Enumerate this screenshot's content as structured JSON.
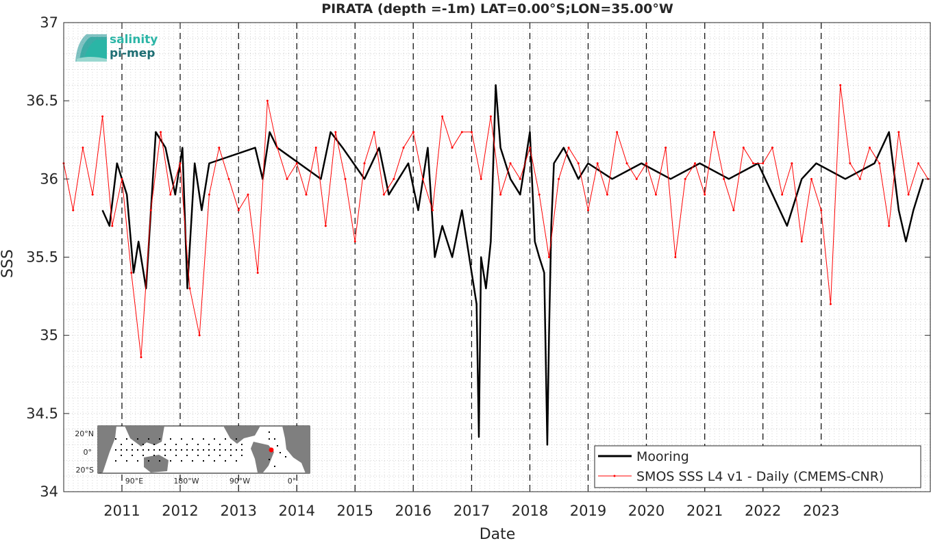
{
  "chart_data": {
    "type": "line",
    "title": "PIRATA (depth =-1m) LAT=0.00°S;LON=35.00°W",
    "xlabel": "Date",
    "ylabel": "SSS",
    "xlim": [
      "2010-01-01",
      "2024-11-15"
    ],
    "ylim": [
      34,
      37
    ],
    "yticks": [
      34,
      34.5,
      35,
      35.5,
      36,
      36.5,
      37
    ],
    "yticklabels": [
      "34",
      "34.5",
      "35",
      "35.5",
      "36",
      "36.5",
      "37"
    ],
    "xticks": [
      "2011-01-01",
      "2012-01-01",
      "2013-01-01",
      "2014-01-01",
      "2015-01-01",
      "2016-01-01",
      "2017-01-01",
      "2018-01-01",
      "2019-01-01",
      "2020-01-01",
      "2021-01-01",
      "2022-01-01",
      "2023-01-01"
    ],
    "xticklabels": [
      "2011",
      "2012",
      "2013",
      "2014",
      "2015",
      "2016",
      "2017",
      "2018",
      "2019",
      "2020",
      "2021",
      "2022",
      "2023"
    ],
    "grid": true,
    "legend_position": "bottom-right",
    "series": [
      {
        "name": "Mooring",
        "color": "#000000",
        "style": "thick-line",
        "x": [
          "2010-09-01",
          "2010-10-15",
          "2010-12-01",
          "2011-02-01",
          "2011-03-15",
          "2011-04-15",
          "2011-06-01",
          "2011-08-01",
          "2011-10-01",
          "2011-12-01",
          "2012-01-15",
          "2012-02-15",
          "2012-04-01",
          "2012-05-15",
          "2012-07-01",
          "2013-04-15",
          "2013-06-01",
          "2013-07-15",
          "2013-09-01",
          "2014-06-01",
          "2014-08-01",
          "2014-10-15",
          "2015-03-01",
          "2015-06-01",
          "2015-08-01",
          "2015-10-01",
          "2015-12-01",
          "2016-02-01",
          "2016-04-01",
          "2016-05-15",
          "2016-07-01",
          "2016-09-01",
          "2016-11-01",
          "2017-01-01",
          "2017-02-01",
          "2017-02-15",
          "2017-03-01",
          "2017-04-01",
          "2017-05-01",
          "2017-06-01",
          "2017-07-01",
          "2017-09-01",
          "2017-11-01",
          "2018-01-01",
          "2018-02-01",
          "2018-03-01",
          "2018-04-01",
          "2018-04-20",
          "2018-05-01",
          "2018-05-15",
          "2018-06-01",
          "2018-08-01",
          "2018-11-01",
          "2019-01-01",
          "2019-06-01",
          "2019-12-01",
          "2020-06-01",
          "2020-12-01",
          "2021-06-01",
          "2021-12-01",
          "2022-06-01",
          "2022-09-01",
          "2022-12-01",
          "2023-06-01",
          "2023-12-01",
          "2024-03-01",
          "2024-05-01",
          "2024-06-15",
          "2024-08-01",
          "2024-10-01"
        ],
        "y": [
          35.8,
          35.7,
          36.1,
          35.9,
          35.4,
          35.6,
          35.3,
          36.3,
          36.2,
          35.9,
          36.2,
          35.3,
          36.1,
          35.8,
          36.1,
          36.2,
          36.0,
          36.3,
          36.2,
          36.0,
          36.3,
          36.2,
          36.0,
          36.2,
          35.9,
          36.0,
          36.1,
          35.8,
          36.2,
          35.5,
          35.7,
          35.5,
          35.8,
          35.4,
          35.2,
          34.35,
          35.5,
          35.3,
          35.6,
          36.6,
          36.2,
          36.0,
          35.9,
          36.3,
          35.6,
          35.5,
          35.4,
          34.3,
          35.0,
          35.7,
          36.1,
          36.2,
          36.0,
          36.1,
          36.0,
          36.1,
          36.0,
          36.1,
          36.0,
          36.1,
          35.7,
          36.0,
          36.1,
          36.0,
          36.1,
          36.3,
          35.8,
          35.6,
          35.8,
          36.0
        ]
      },
      {
        "name": "SMOS SSS L4 v1 - Daily (CMEMS-CNR)",
        "color": "#ff0000",
        "style": "thin-line-dots",
        "x": [
          "2010-01-01",
          "2010-03-01",
          "2010-05-01",
          "2010-07-01",
          "2010-09-01",
          "2010-11-01",
          "2011-01-01",
          "2011-03-01",
          "2011-05-01",
          "2011-07-01",
          "2011-09-01",
          "2011-11-01",
          "2012-01-01",
          "2012-03-01",
          "2012-05-01",
          "2012-07-01",
          "2012-09-01",
          "2012-11-01",
          "2013-01-01",
          "2013-03-01",
          "2013-05-01",
          "2013-07-01",
          "2013-09-01",
          "2013-11-01",
          "2014-01-01",
          "2014-03-01",
          "2014-05-01",
          "2014-07-01",
          "2014-09-01",
          "2014-11-01",
          "2015-01-01",
          "2015-03-01",
          "2015-05-01",
          "2015-07-01",
          "2015-09-01",
          "2015-11-01",
          "2016-01-01",
          "2016-03-01",
          "2016-05-01",
          "2016-07-01",
          "2016-09-01",
          "2016-11-01",
          "2017-01-01",
          "2017-03-01",
          "2017-05-01",
          "2017-07-01",
          "2017-09-01",
          "2017-11-01",
          "2018-01-01",
          "2018-03-01",
          "2018-05-01",
          "2018-07-01",
          "2018-09-01",
          "2018-11-01",
          "2019-01-01",
          "2019-03-01",
          "2019-05-01",
          "2019-07-01",
          "2019-09-01",
          "2019-11-01",
          "2020-01-01",
          "2020-03-01",
          "2020-05-01",
          "2020-07-01",
          "2020-09-01",
          "2020-11-01",
          "2021-01-01",
          "2021-03-01",
          "2021-05-01",
          "2021-07-01",
          "2021-09-01",
          "2021-11-01",
          "2022-01-01",
          "2022-03-01",
          "2022-05-01",
          "2022-07-01",
          "2022-09-01",
          "2022-11-01",
          "2023-01-01",
          "2023-03-01",
          "2023-05-01",
          "2023-07-01",
          "2023-09-01",
          "2023-11-01",
          "2024-01-01",
          "2024-03-01",
          "2024-05-01",
          "2024-07-01",
          "2024-09-01",
          "2024-11-01"
        ],
        "y": [
          36.1,
          35.8,
          36.2,
          35.9,
          36.4,
          35.7,
          36.0,
          35.4,
          34.86,
          35.8,
          36.3,
          35.9,
          36.1,
          35.3,
          35.0,
          35.9,
          36.2,
          36.0,
          35.8,
          35.9,
          35.4,
          36.5,
          36.2,
          36.0,
          36.1,
          35.9,
          36.2,
          35.7,
          36.3,
          36.0,
          35.6,
          36.1,
          36.3,
          35.9,
          36.0,
          36.2,
          36.3,
          36.0,
          35.8,
          36.4,
          36.2,
          36.3,
          36.3,
          36.0,
          36.4,
          35.9,
          36.1,
          36.0,
          36.2,
          35.9,
          35.5,
          36.0,
          36.2,
          36.1,
          35.8,
          36.1,
          35.9,
          36.3,
          36.1,
          36.0,
          36.1,
          35.9,
          36.2,
          35.5,
          36.0,
          36.1,
          35.9,
          36.3,
          36.0,
          35.8,
          36.2,
          36.1,
          36.1,
          36.2,
          35.9,
          36.1,
          35.6,
          36.0,
          35.8,
          35.2,
          36.6,
          36.1,
          36.0,
          36.2,
          36.1,
          35.7,
          36.3,
          35.9,
          36.1,
          36.0
        ]
      }
    ],
    "logo": {
      "line1": "salinity",
      "line2": "pi-mep"
    },
    "inset_map": {
      "ytick_labels": [
        "20°N",
        "0°",
        "20°S"
      ],
      "xtick_labels": [
        "90°E",
        "180°W",
        "90°W",
        "0°"
      ],
      "land_color": "#7f7f7f",
      "marker_color": "#ff0000"
    }
  }
}
